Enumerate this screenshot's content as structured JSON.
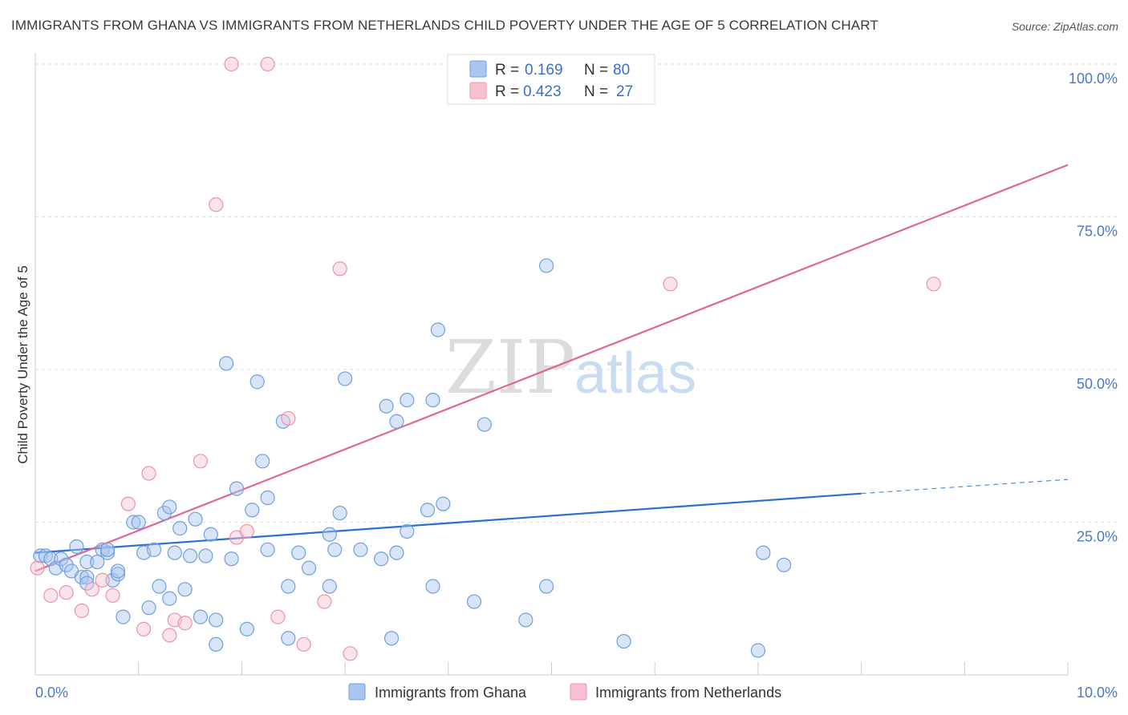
{
  "title": "IMMIGRANTS FROM GHANA VS IMMIGRANTS FROM NETHERLANDS CHILD POVERTY UNDER THE AGE OF 5 CORRELATION CHART",
  "source": "Source: ZipAtlas.com",
  "watermark": {
    "zip": "ZIP",
    "atlas": "atlas"
  },
  "legend_top": [
    {
      "r_label": "R =",
      "r_value": "0.169",
      "n_label": "N =",
      "n_value": "80",
      "color": "#a9c6ee"
    },
    {
      "r_label": "R =",
      "r_value": "0.423",
      "n_label": "N =",
      "n_value": "27",
      "color": "#f4b8c8"
    }
  ],
  "colors": {
    "ghana_fill": "#a9c6ee",
    "ghana_stroke": "#6f9fe0",
    "ghana_line": "#2b6fd1",
    "netherlands_fill": "#f7c1d0",
    "netherlands_stroke": "#ec92ac",
    "netherlands_line": "#e06690",
    "tick_label": "#4a78c8",
    "grid": "#dddddd"
  },
  "chart_data": {
    "type": "scatter",
    "title": "IMMIGRANTS FROM GHANA VS IMMIGRANTS FROM NETHERLANDS CHILD POVERTY UNDER THE AGE OF 5 CORRELATION CHART",
    "xlabel": "",
    "ylabel": "Child Poverty Under the Age of 5",
    "xlim": [
      0,
      10
    ],
    "ylim": [
      0,
      100
    ],
    "x_tick_labels": [
      "0.0%",
      "10.0%"
    ],
    "y_ticks": [
      25,
      50,
      75,
      100
    ],
    "y_tick_labels": [
      "25.0%",
      "50.0%",
      "75.0%",
      "100.0%"
    ],
    "grid": true,
    "legend_position": "top-center",
    "series": [
      {
        "name": "Immigrants from Ghana",
        "r": 0.169,
        "n": 80,
        "trend": {
          "x": [
            0,
            8.0
          ],
          "y": [
            20.0,
            29.7
          ],
          "dashed_to": [
            10.0,
            32.0
          ]
        },
        "points": [
          [
            0.05,
            19.5
          ],
          [
            0.1,
            19.5
          ],
          [
            0.15,
            19.0
          ],
          [
            0.2,
            17.5
          ],
          [
            0.25,
            19.0
          ],
          [
            0.3,
            18.0
          ],
          [
            0.35,
            17.0
          ],
          [
            0.4,
            21.0
          ],
          [
            0.45,
            16.0
          ],
          [
            0.5,
            16.0
          ],
          [
            0.5,
            18.5
          ],
          [
            0.5,
            15.0
          ],
          [
            0.6,
            18.5
          ],
          [
            0.65,
            20.5
          ],
          [
            0.7,
            20.0
          ],
          [
            0.7,
            20.5
          ],
          [
            0.75,
            15.5
          ],
          [
            0.8,
            16.5
          ],
          [
            0.8,
            17.0
          ],
          [
            0.85,
            9.5
          ],
          [
            0.95,
            25.0
          ],
          [
            1.0,
            25.0
          ],
          [
            1.05,
            20.0
          ],
          [
            1.1,
            11.0
          ],
          [
            1.15,
            20.5
          ],
          [
            1.2,
            14.5
          ],
          [
            1.25,
            26.5
          ],
          [
            1.3,
            12.5
          ],
          [
            1.3,
            27.5
          ],
          [
            1.35,
            20.0
          ],
          [
            1.4,
            24.0
          ],
          [
            1.45,
            14.0
          ],
          [
            1.5,
            19.5
          ],
          [
            1.55,
            25.5
          ],
          [
            1.6,
            9.5
          ],
          [
            1.65,
            19.5
          ],
          [
            1.7,
            23.0
          ],
          [
            1.75,
            5.0
          ],
          [
            1.75,
            9.0
          ],
          [
            1.85,
            51.0
          ],
          [
            1.9,
            19.0
          ],
          [
            1.95,
            30.5
          ],
          [
            2.05,
            7.5
          ],
          [
            2.1,
            27.0
          ],
          [
            2.15,
            48.0
          ],
          [
            2.2,
            35.0
          ],
          [
            2.25,
            29.0
          ],
          [
            2.25,
            20.5
          ],
          [
            2.4,
            41.5
          ],
          [
            2.45,
            6.0
          ],
          [
            2.45,
            14.5
          ],
          [
            2.55,
            20.0
          ],
          [
            2.65,
            17.5
          ],
          [
            2.85,
            23.0
          ],
          [
            2.85,
            14.5
          ],
          [
            2.9,
            20.5
          ],
          [
            2.95,
            26.5
          ],
          [
            3.0,
            48.5
          ],
          [
            3.15,
            20.5
          ],
          [
            3.35,
            19.0
          ],
          [
            3.4,
            44.0
          ],
          [
            3.45,
            6.0
          ],
          [
            3.5,
            41.5
          ],
          [
            3.5,
            20.0
          ],
          [
            3.6,
            23.5
          ],
          [
            3.6,
            45.0
          ],
          [
            3.8,
            27.0
          ],
          [
            3.85,
            45.0
          ],
          [
            3.85,
            14.5
          ],
          [
            3.9,
            56.5
          ],
          [
            3.95,
            28.0
          ],
          [
            4.25,
            12.0
          ],
          [
            4.35,
            41.0
          ],
          [
            4.75,
            9.0
          ],
          [
            4.95,
            67.0
          ],
          [
            4.95,
            14.5
          ],
          [
            5.7,
            5.5
          ],
          [
            7.05,
            20.0
          ],
          [
            7.25,
            18.0
          ],
          [
            7.0,
            4.0
          ]
        ]
      },
      {
        "name": "Immigrants from Netherlands",
        "r": 0.423,
        "n": 27,
        "trend": {
          "x": [
            0,
            10.0
          ],
          "y": [
            17.0,
            83.5
          ]
        },
        "points": [
          [
            0.02,
            17.5
          ],
          [
            0.15,
            13.0
          ],
          [
            0.3,
            13.5
          ],
          [
            0.45,
            10.5
          ],
          [
            0.55,
            14.0
          ],
          [
            0.65,
            15.5
          ],
          [
            0.75,
            13.0
          ],
          [
            0.9,
            28.0
          ],
          [
            1.05,
            7.5
          ],
          [
            1.1,
            33.0
          ],
          [
            1.3,
            6.5
          ],
          [
            1.35,
            9.0
          ],
          [
            1.45,
            8.5
          ],
          [
            1.6,
            35.0
          ],
          [
            1.75,
            77.0
          ],
          [
            1.9,
            100.0
          ],
          [
            1.95,
            22.5
          ],
          [
            2.05,
            23.5
          ],
          [
            2.25,
            100.0
          ],
          [
            2.35,
            9.5
          ],
          [
            2.45,
            42.0
          ],
          [
            2.6,
            5.0
          ],
          [
            2.8,
            12.0
          ],
          [
            2.95,
            66.5
          ],
          [
            3.05,
            3.5
          ],
          [
            6.15,
            64.0
          ],
          [
            8.7,
            64.0
          ]
        ]
      }
    ]
  },
  "bottom_legend": [
    {
      "label": "Immigrants from Ghana"
    },
    {
      "label": "Immigrants from Netherlands"
    }
  ]
}
